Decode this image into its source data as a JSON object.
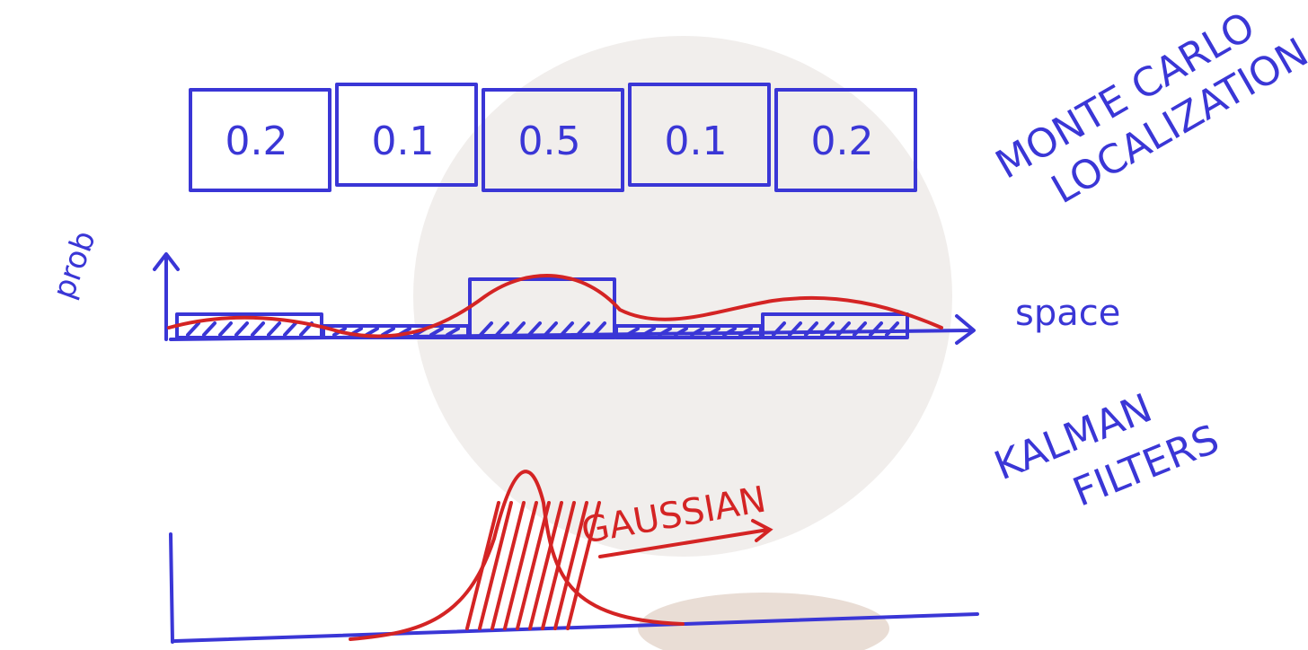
{
  "cells": [
    0.2,
    0.1,
    0.5,
    0.1,
    0.2
  ],
  "monte_carlo": [
    "MONTE CARLO",
    "LOCALIZATION"
  ],
  "y_label": "prob",
  "x_label": "space",
  "kalman": [
    "KALMAN",
    "FILTERS"
  ],
  "gaussian_label": "GAUSSIAN"
}
